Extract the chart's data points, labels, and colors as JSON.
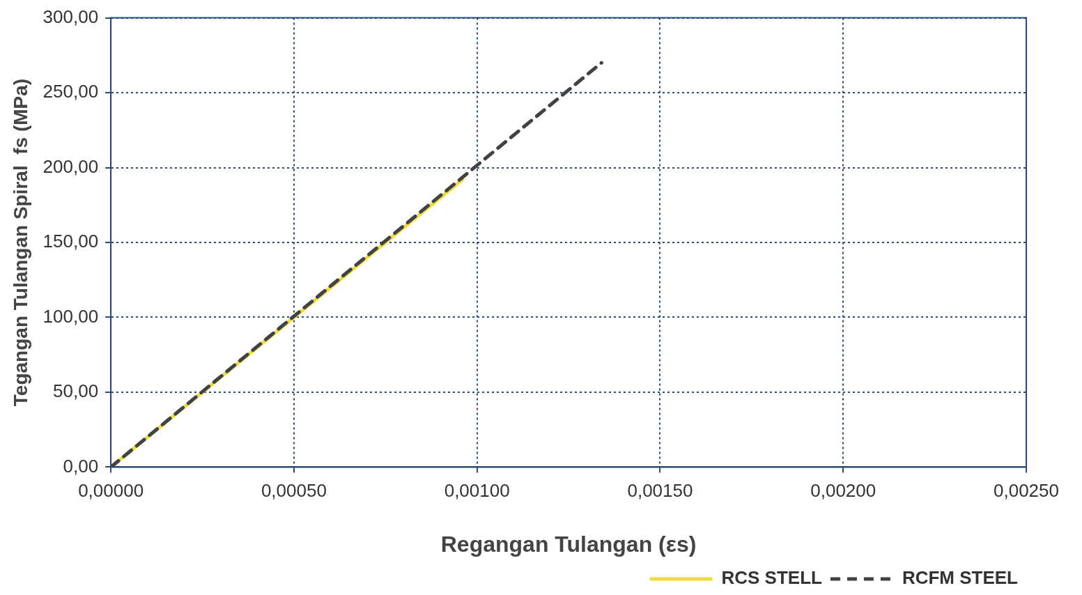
{
  "chart_data": {
    "type": "line",
    "xlabel": "Regangan Tulangan (εs)",
    "ylabel": "Tegangan Tulangan Spiral  fs (MPa)",
    "xlim": [
      0,
      0.0025
    ],
    "xticks": [
      {
        "value": 0,
        "label": "0,00000"
      },
      {
        "value": 0.0005,
        "label": "0,00050"
      },
      {
        "value": 0.001,
        "label": "0,00100"
      },
      {
        "value": 0.0015,
        "label": "0,00150"
      },
      {
        "value": 0.002,
        "label": "0,00200"
      },
      {
        "value": 0.0025,
        "label": "0,00250"
      }
    ],
    "ylim": [
      0,
      300
    ],
    "yticks": [
      {
        "value": 0,
        "label": "0,00"
      },
      {
        "value": 50,
        "label": "50,00"
      },
      {
        "value": 100,
        "label": "100,00"
      },
      {
        "value": 150,
        "label": "150,00"
      },
      {
        "value": 200,
        "label": "200,00"
      },
      {
        "value": 250,
        "label": "250,00"
      },
      {
        "value": 300,
        "label": "300,00"
      }
    ],
    "grid": true,
    "legend": "bottom right",
    "marker": "none",
    "series": [
      {
        "name": "RCS STELL",
        "color": "#f2dc3c",
        "line_style": "solid",
        "x": [
          0,
          0.00096
        ],
        "values": [
          0,
          192
        ]
      },
      {
        "name": "RCFM STEEL",
        "color": "#3f4443",
        "line_style": "dashed",
        "x": [
          0,
          0.00134
        ],
        "values": [
          0,
          270
        ]
      }
    ]
  }
}
